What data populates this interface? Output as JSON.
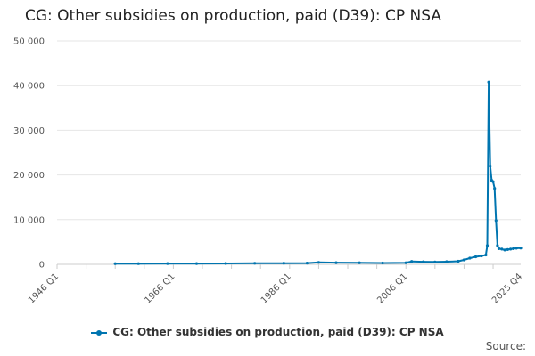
{
  "chart_data": {
    "type": "line",
    "title": "CG: Other subsidies on production, paid (D39): CP NSA",
    "xlabel": "",
    "ylabel": "",
    "x_range": [
      1946,
      2025.75
    ],
    "ylim": [
      0,
      50000
    ],
    "y_ticks": [
      0,
      10000,
      20000,
      30000,
      40000,
      50000
    ],
    "y_tick_labels": [
      "0",
      "10 000",
      "20 000",
      "30 000",
      "40 000",
      "50 000"
    ],
    "x_ticks": [
      1946,
      1966,
      1986,
      2006,
      2025.75
    ],
    "x_tick_labels": [
      "1946 Q1",
      "1966 Q1",
      "1986 Q1",
      "2006 Q1",
      "2025 Q4"
    ],
    "grid": true,
    "legend_position": "bottom",
    "series": [
      {
        "name": "CG: Other subsidies on production, paid (D39): CP NSA",
        "color": "#0075b0",
        "points": [
          [
            1956,
            150
          ],
          [
            1960,
            160
          ],
          [
            1965,
            170
          ],
          [
            1970,
            180
          ],
          [
            1975,
            200
          ],
          [
            1980,
            230
          ],
          [
            1985,
            260
          ],
          [
            1989,
            280
          ],
          [
            1991,
            430
          ],
          [
            1994,
            380
          ],
          [
            1998,
            360
          ],
          [
            2002,
            300
          ],
          [
            2006,
            360
          ],
          [
            2007,
            650
          ],
          [
            2009,
            580
          ],
          [
            2011,
            530
          ],
          [
            2013,
            600
          ],
          [
            2015,
            700
          ],
          [
            2016,
            1000
          ],
          [
            2017,
            1400
          ],
          [
            2018,
            1700
          ],
          [
            2019,
            1900
          ],
          [
            2019.75,
            2100
          ],
          [
            2020,
            4200
          ],
          [
            2020.25,
            40800
          ],
          [
            2020.5,
            22000
          ],
          [
            2020.75,
            18800
          ],
          [
            2021,
            18500
          ],
          [
            2021.25,
            17000
          ],
          [
            2021.5,
            9800
          ],
          [
            2021.75,
            4200
          ],
          [
            2022,
            3500
          ],
          [
            2022.5,
            3400
          ],
          [
            2023,
            3200
          ],
          [
            2023.5,
            3300
          ],
          [
            2024,
            3400
          ],
          [
            2024.5,
            3500
          ],
          [
            2025,
            3600
          ],
          [
            2025.75,
            3650
          ]
        ]
      }
    ]
  },
  "footer": {
    "source_label": "Source:"
  }
}
